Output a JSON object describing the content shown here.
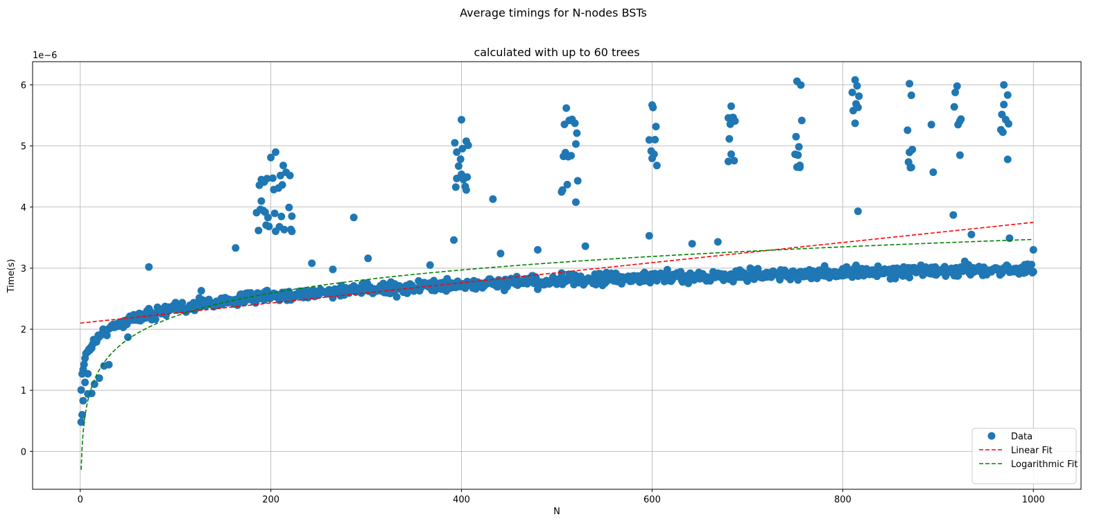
{
  "chart_data": {
    "type": "scatter",
    "suptitle": "Average timings for N-nodes BSTs",
    "title": "calculated with up to 60 trees",
    "xlabel": "N",
    "ylabel": "Time(s)",
    "y_offset_label": "1e−6",
    "xlim": [
      -50,
      1050
    ],
    "ylim": [
      -0.62,
      6.38
    ],
    "x_ticks": [
      0,
      200,
      400,
      600,
      800,
      1000
    ],
    "x_tick_labels": [
      "0",
      "200",
      "400",
      "600",
      "800",
      "1000"
    ],
    "y_ticks": [
      0,
      1,
      2,
      3,
      4,
      5,
      6
    ],
    "y_tick_labels": [
      "0",
      "1",
      "2",
      "3",
      "4",
      "5",
      "6"
    ],
    "grid": true,
    "legend_position": "lower-right",
    "colors": {
      "data": "#1f77b4",
      "linear": "#ff0000",
      "log": "#008000"
    },
    "legend": [
      "Data",
      "Linear Fit",
      "Logarithmic Fit"
    ],
    "series": [
      {
        "name": "Data",
        "kind": "scatter",
        "trend": "approximately 0.28*ln(N) + 1.05 (x1e-6), with spike clusters",
        "sample_points": [
          [
            1,
            0.48
          ],
          [
            2,
            0.6
          ],
          [
            3,
            0.83
          ],
          [
            5,
            1.13
          ],
          [
            8,
            0.94
          ],
          [
            8,
            1.27
          ],
          [
            12,
            0.95
          ],
          [
            15,
            1.1
          ],
          [
            20,
            1.2
          ],
          [
            25,
            1.4
          ],
          [
            30,
            1.42
          ],
          [
            50,
            1.87
          ],
          [
            72,
            3.02
          ],
          [
            90,
            2.23
          ],
          [
            127,
            2.63
          ],
          [
            130,
            2.45
          ],
          [
            163,
            3.33
          ],
          [
            190,
            4.45
          ],
          [
            205,
            4.9
          ],
          [
            222,
            3.85
          ],
          [
            243,
            3.08
          ],
          [
            265,
            2.98
          ],
          [
            287,
            3.83
          ],
          [
            302,
            3.16
          ],
          [
            367,
            3.05
          ],
          [
            392,
            3.46
          ],
          [
            395,
            4.9
          ],
          [
            400,
            5.43
          ],
          [
            405,
            4.28
          ],
          [
            433,
            4.13
          ],
          [
            441,
            3.24
          ],
          [
            480,
            3.3
          ],
          [
            510,
            5.62
          ],
          [
            520,
            4.08
          ],
          [
            530,
            3.36
          ],
          [
            597,
            3.53
          ],
          [
            600,
            5.67
          ],
          [
            605,
            4.68
          ],
          [
            642,
            3.4
          ],
          [
            669,
            3.43
          ],
          [
            680,
            5.46
          ],
          [
            683,
            5.65
          ],
          [
            686,
            4.76
          ],
          [
            752,
            6.06
          ],
          [
            755,
            4.65
          ],
          [
            813,
            6.08
          ],
          [
            816,
            3.93
          ],
          [
            870,
            6.02
          ],
          [
            872,
            4.65
          ],
          [
            893,
            5.35
          ],
          [
            895,
            4.57
          ],
          [
            916,
            3.87
          ],
          [
            920,
            5.98
          ],
          [
            923,
            4.85
          ],
          [
            935,
            3.55
          ],
          [
            969,
            6.0
          ],
          [
            973,
            4.78
          ],
          [
            975,
            3.49
          ],
          [
            1000,
            3.3
          ]
        ]
      },
      {
        "name": "Linear Fit",
        "kind": "dashed-line",
        "x_range": [
          0,
          1000
        ],
        "y_at_0": 2.1,
        "y_at_1000": 3.75
      },
      {
        "name": "Logarithmic Fit",
        "kind": "dashed-line",
        "x_range": [
          1,
          1000
        ],
        "approx": "0.546*ln(N) - 0.30",
        "y_at_1": -0.3,
        "y_at_1000": 3.47
      }
    ]
  }
}
